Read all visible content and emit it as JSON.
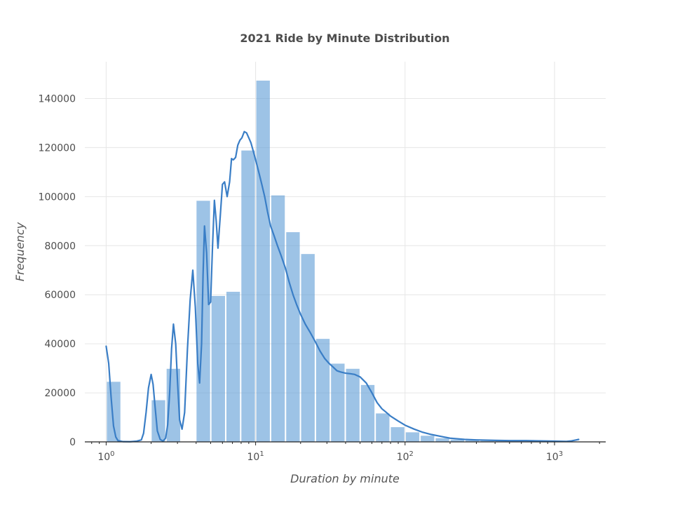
{
  "chart_data": {
    "type": "bar",
    "title": "2021 Ride by Minute Distribution",
    "xlabel": "Duration by minute",
    "ylabel": "Frequency",
    "x_scale": "log",
    "xlim": [
      0.72,
      2200
    ],
    "ylim": [
      0,
      155000
    ],
    "grid": true,
    "y_ticks": [
      0,
      20000,
      40000,
      60000,
      80000,
      100000,
      120000,
      140000
    ],
    "x_ticks": [
      {
        "value": 1,
        "base": "10",
        "exp": "0"
      },
      {
        "value": 10,
        "base": "10",
        "exp": "1"
      },
      {
        "value": 100,
        "base": "10",
        "exp": "2"
      },
      {
        "value": 1000,
        "base": "10",
        "exp": "3"
      }
    ],
    "bar_color": "#5b9bd5",
    "kde_color": "#3a7ec6",
    "bin_edges": [
      1.0,
      1.259,
      1.585,
      1.995,
      2.512,
      3.162,
      3.981,
      5.012,
      6.31,
      7.943,
      10.0,
      12.59,
      15.85,
      19.95,
      25.12,
      31.62,
      39.81,
      50.12,
      63.1,
      79.43,
      100.0,
      125.9,
      158.5,
      199.5,
      251.2,
      316.2,
      398.1,
      501.2,
      631.0,
      794.3,
      1000.0,
      1259.0,
      1585.0
    ],
    "values": [
      24500,
      0,
      0,
      17000,
      29800,
      0,
      98300,
      59500,
      61200,
      118800,
      147300,
      100500,
      85500,
      76600,
      42000,
      31900,
      29800,
      23200,
      11600,
      6000,
      3900,
      2500,
      1500,
      900,
      600,
      400,
      300,
      250,
      200,
      150,
      100,
      100
    ],
    "kde": {
      "x": [
        1.0,
        1.04,
        1.08,
        1.12,
        1.16,
        1.2,
        1.3,
        1.45,
        1.6,
        1.72,
        1.78,
        1.85,
        1.92,
        2.0,
        2.06,
        2.12,
        2.2,
        2.3,
        2.4,
        2.5,
        2.58,
        2.66,
        2.74,
        2.82,
        2.92,
        3.0,
        3.1,
        3.22,
        3.35,
        3.5,
        3.65,
        3.8,
        3.95,
        4.1,
        4.22,
        4.35,
        4.45,
        4.55,
        4.7,
        4.85,
        5.0,
        5.15,
        5.3,
        5.45,
        5.6,
        5.8,
        6.0,
        6.2,
        6.45,
        6.7,
        6.9,
        7.1,
        7.35,
        7.6,
        7.85,
        8.1,
        8.4,
        8.7,
        9.0,
        9.3,
        9.6,
        9.9,
        10.2,
        10.6,
        11.0,
        11.5,
        12.0,
        12.6,
        13.3,
        14.0,
        14.8,
        15.8,
        16.8,
        17.8,
        18.8,
        20.0,
        21.5,
        23.0,
        25.0,
        27.0,
        29.0,
        31.0,
        33.0,
        35.0,
        37.0,
        40.0,
        43.0,
        46.0,
        50.0,
        55.0,
        60.0,
        65.0,
        70.0,
        75.0,
        80.0,
        90.0,
        100.0,
        115.0,
        130.0,
        150.0,
        175.0,
        200.0,
        250.0,
        300.0,
        400.0,
        500.0,
        650.0,
        800.0,
        1000.0,
        1200.0,
        1300.0,
        1400.0,
        1450.0
      ],
      "y": [
        39000,
        32000,
        18000,
        6500,
        2000,
        500,
        100,
        80,
        300,
        800,
        3500,
        12000,
        22000,
        27500,
        23500,
        15000,
        4500,
        1000,
        300,
        1500,
        7000,
        20000,
        38000,
        48000,
        40000,
        25000,
        9000,
        5200,
        12000,
        38000,
        58000,
        70000,
        55000,
        32000,
        24000,
        40000,
        68000,
        88000,
        77000,
        56000,
        57000,
        80000,
        98500,
        90000,
        79000,
        92000,
        105000,
        106000,
        100000,
        106000,
        115500,
        115000,
        116000,
        121000,
        123000,
        124000,
        126500,
        126000,
        124000,
        122000,
        119000,
        116000,
        113000,
        109000,
        105000,
        100000,
        94000,
        88000,
        84000,
        80000,
        76000,
        71000,
        65000,
        60000,
        56000,
        52000,
        48000,
        45000,
        41000,
        37000,
        34000,
        32000,
        30500,
        29000,
        28500,
        28000,
        27800,
        27500,
        26500,
        24000,
        20000,
        16000,
        13500,
        12000,
        10500,
        8500,
        6800,
        5200,
        4000,
        3000,
        2200,
        1500,
        1000,
        800,
        600,
        500,
        500,
        400,
        300,
        200,
        400,
        800,
        1000
      ]
    }
  }
}
